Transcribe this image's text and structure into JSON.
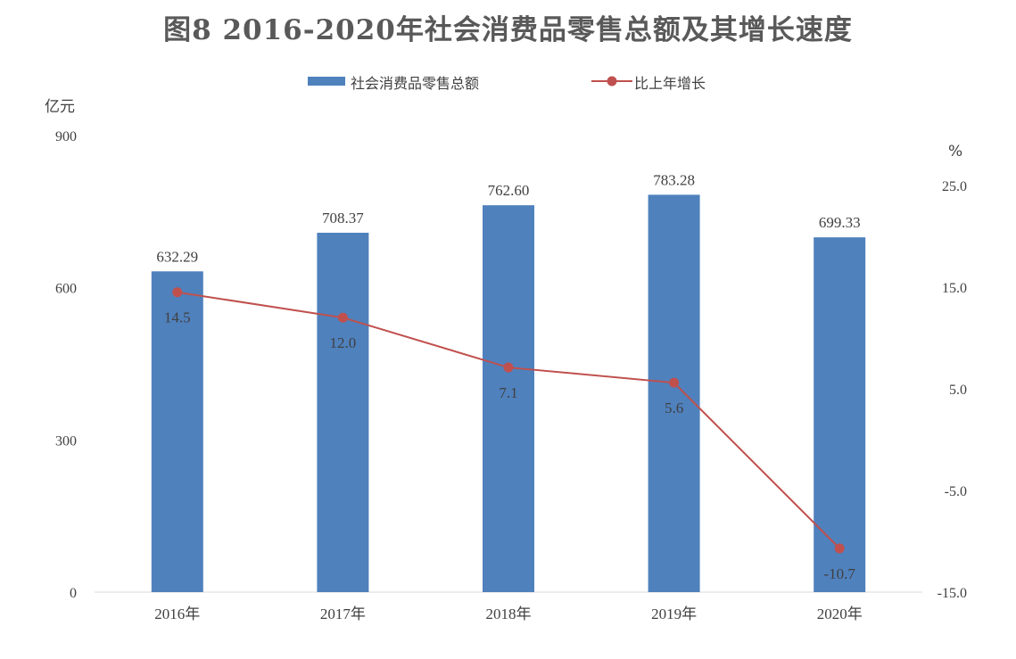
{
  "title": "图8  2016-2020年社会消费品零售总额及其增长速度",
  "legend": {
    "bar_label": "社会消费品零售总额",
    "line_label": "比上年增长"
  },
  "left_axis_unit": "亿元",
  "right_axis_unit": "%",
  "colors": {
    "bar": "#4f81bd",
    "line": "#c0504d",
    "text": "#404040",
    "title": "#595959"
  },
  "chart_data": {
    "type": "bar+line",
    "title": "图8  2016-2020年社会消费品零售总额及其增长速度",
    "categories": [
      "2016年",
      "2017年",
      "2018年",
      "2019年",
      "2020年"
    ],
    "series": [
      {
        "name": "社会消费品零售总额",
        "type": "bar",
        "axis": "left",
        "values": [
          632.29,
          708.37,
          762.6,
          783.28,
          699.33
        ],
        "labels": [
          "632.29",
          "708.37",
          "762.60",
          "783.28",
          "699.33"
        ]
      },
      {
        "name": "比上年增长",
        "type": "line",
        "axis": "right",
        "values": [
          14.5,
          12.0,
          7.1,
          5.6,
          -10.7
        ],
        "labels": [
          "14.5",
          "12.0",
          "7.1",
          "5.6",
          "-10.7"
        ]
      }
    ],
    "left_axis": {
      "label": "亿元",
      "ylim": [
        0,
        900
      ],
      "ticks": [
        "0",
        "300",
        "600",
        "900"
      ],
      "tick_values": [
        0,
        300,
        600,
        900
      ]
    },
    "right_axis": {
      "label": "%",
      "ylim": [
        -15,
        25
      ],
      "ticks": [
        "-15.0",
        "-5.0",
        "5.0",
        "15.0",
        "25.0"
      ],
      "tick_values": [
        -15,
        -5,
        5,
        15,
        25
      ]
    },
    "grid": false,
    "legend_position": "top-center"
  }
}
